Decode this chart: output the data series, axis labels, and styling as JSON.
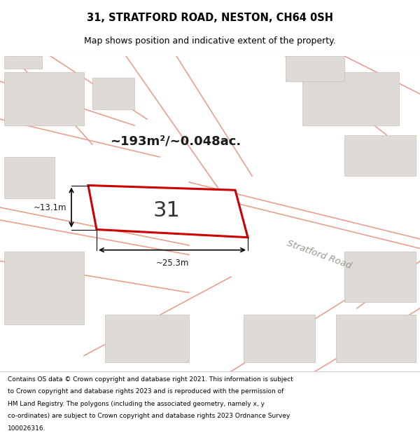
{
  "title": "31, STRATFORD ROAD, NESTON, CH64 0SH",
  "subtitle": "Map shows position and indicative extent of the property.",
  "footer_lines": [
    "Contains OS data © Crown copyright and database right 2021. This information is subject",
    "to Crown copyright and database rights 2023 and is reproduced with the permission of",
    "HM Land Registry. The polygons (including the associated geometry, namely x, y",
    "co-ordinates) are subject to Crown copyright and database rights 2023 Ordnance Survey",
    "100026316."
  ],
  "area_label": "~193m²/~0.048ac.",
  "plot_number": "31",
  "dim_width": "~25.3m",
  "dim_height": "~13.1m",
  "map_bg": "#f5f3f0",
  "plot_fill": "#ffffff",
  "plot_edge_color": "#cc0000",
  "road_label": "Stratford Road",
  "road_color": "#e8a090",
  "bld_color": "#dedad5",
  "bld_ec": "#c8c0b8"
}
